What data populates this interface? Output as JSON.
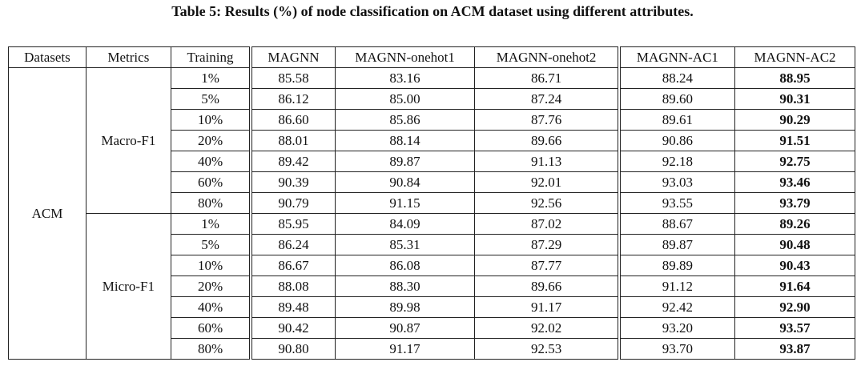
{
  "caption": "Table 5: Results (%) of node classification on ACM dataset using different attributes.",
  "table": {
    "header": [
      "Datasets",
      "Metrics",
      "Training",
      "MAGNN",
      "MAGNN-onehot1",
      "MAGNN-onehot2",
      "MAGNN-AC1",
      "MAGNN-AC2"
    ],
    "dataset": "ACM",
    "groups": [
      {
        "metric": "Macro-F1",
        "rows": [
          [
            "1%",
            "85.58",
            "83.16",
            "86.71",
            "88.24",
            "88.95"
          ],
          [
            "5%",
            "86.12",
            "85.00",
            "87.24",
            "89.60",
            "90.31"
          ],
          [
            "10%",
            "86.60",
            "85.86",
            "87.76",
            "89.61",
            "90.29"
          ],
          [
            "20%",
            "88.01",
            "88.14",
            "89.66",
            "90.86",
            "91.51"
          ],
          [
            "40%",
            "89.42",
            "89.87",
            "91.13",
            "92.18",
            "92.75"
          ],
          [
            "60%",
            "90.39",
            "90.84",
            "92.01",
            "93.03",
            "93.46"
          ],
          [
            "80%",
            "90.79",
            "91.15",
            "92.56",
            "93.55",
            "93.79"
          ]
        ]
      },
      {
        "metric": "Micro-F1",
        "rows": [
          [
            "1%",
            "85.95",
            "84.09",
            "87.02",
            "88.67",
            "89.26"
          ],
          [
            "5%",
            "86.24",
            "85.31",
            "87.29",
            "89.87",
            "90.48"
          ],
          [
            "10%",
            "86.67",
            "86.08",
            "87.77",
            "89.89",
            "90.43"
          ],
          [
            "20%",
            "88.08",
            "88.30",
            "89.66",
            "91.12",
            "91.64"
          ],
          [
            "40%",
            "89.48",
            "89.98",
            "91.17",
            "92.42",
            "92.90"
          ],
          [
            "60%",
            "90.42",
            "90.87",
            "92.02",
            "93.20",
            "93.57"
          ],
          [
            "80%",
            "90.80",
            "91.17",
            "92.53",
            "93.70",
            "93.87"
          ]
        ]
      }
    ]
  }
}
